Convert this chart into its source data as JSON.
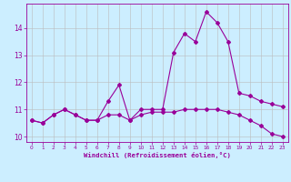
{
  "xlabel": "Windchill (Refroidissement éolien,°C)",
  "line1_x": [
    0,
    1,
    2,
    3,
    4,
    5,
    6,
    7,
    8,
    9,
    10,
    11,
    12,
    13,
    14,
    15,
    16,
    17,
    18,
    19,
    20,
    21,
    22,
    23
  ],
  "line1_y": [
    10.6,
    10.5,
    10.8,
    11.0,
    10.8,
    10.6,
    10.6,
    11.3,
    11.9,
    10.6,
    11.0,
    11.0,
    11.0,
    13.1,
    13.8,
    13.5,
    14.6,
    14.2,
    13.5,
    11.6,
    11.5,
    11.3,
    11.2,
    11.1
  ],
  "line2_x": [
    0,
    1,
    2,
    3,
    4,
    5,
    6,
    7,
    8,
    9,
    10,
    11,
    12,
    13,
    14,
    15,
    16,
    17,
    18,
    19,
    20,
    21,
    22,
    23
  ],
  "line2_y": [
    10.6,
    10.5,
    10.8,
    11.0,
    10.8,
    10.6,
    10.6,
    10.8,
    10.8,
    10.6,
    10.8,
    10.9,
    10.9,
    10.9,
    11.0,
    11.0,
    11.0,
    11.0,
    10.9,
    10.8,
    10.6,
    10.4,
    10.1,
    10.0
  ],
  "color": "#990099",
  "bg_color": "#cceeff",
  "grid_color": "#bbbbbb",
  "ylim": [
    9.8,
    14.9
  ],
  "xlim": [
    -0.5,
    23.5
  ],
  "yticks": [
    10,
    11,
    12,
    13,
    14
  ],
  "xticks": [
    0,
    1,
    2,
    3,
    4,
    5,
    6,
    7,
    8,
    9,
    10,
    11,
    12,
    13,
    14,
    15,
    16,
    17,
    18,
    19,
    20,
    21,
    22,
    23
  ]
}
